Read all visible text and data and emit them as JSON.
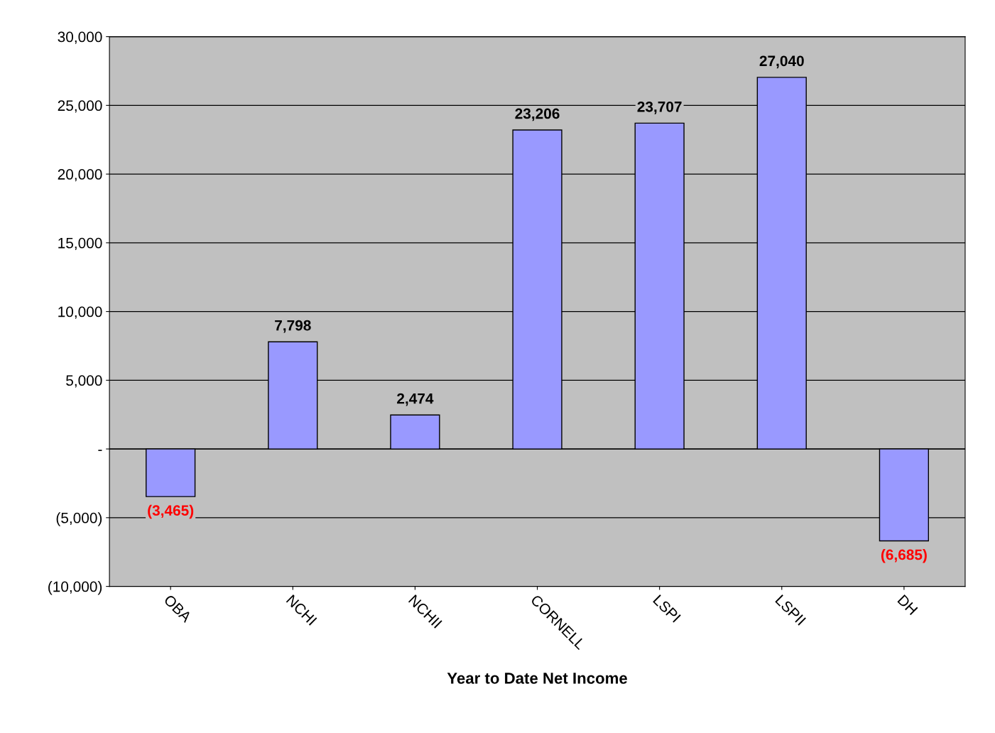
{
  "chart_data": {
    "type": "bar",
    "xlabel": "Year to Date Net Income",
    "categories": [
      "OBA",
      "NCHI",
      "NCHII",
      "CORNELL",
      "LSPI",
      "LSPII",
      "DH"
    ],
    "values": [
      -3465,
      7798,
      2474,
      23206,
      23707,
      27040,
      -6685
    ],
    "value_labels": [
      "(3,465)",
      "7,798",
      "2,474",
      "23,206",
      "23,707",
      "27,040",
      "(6,685)"
    ],
    "color": "#9999ff",
    "ylim": [
      -10000,
      30000
    ],
    "yticks": [
      {
        "value": -10000,
        "label": "(10,000)"
      },
      {
        "value": -5000,
        "label": "(5,000)"
      },
      {
        "value": 0,
        "label": "-"
      },
      {
        "value": 5000,
        "label": "5,000"
      },
      {
        "value": 10000,
        "label": "10,000"
      },
      {
        "value": 15000,
        "label": "15,000"
      },
      {
        "value": 20000,
        "label": "20,000"
      },
      {
        "value": 25000,
        "label": "25,000"
      },
      {
        "value": 30000,
        "label": "30,000"
      }
    ],
    "grid": "y"
  }
}
